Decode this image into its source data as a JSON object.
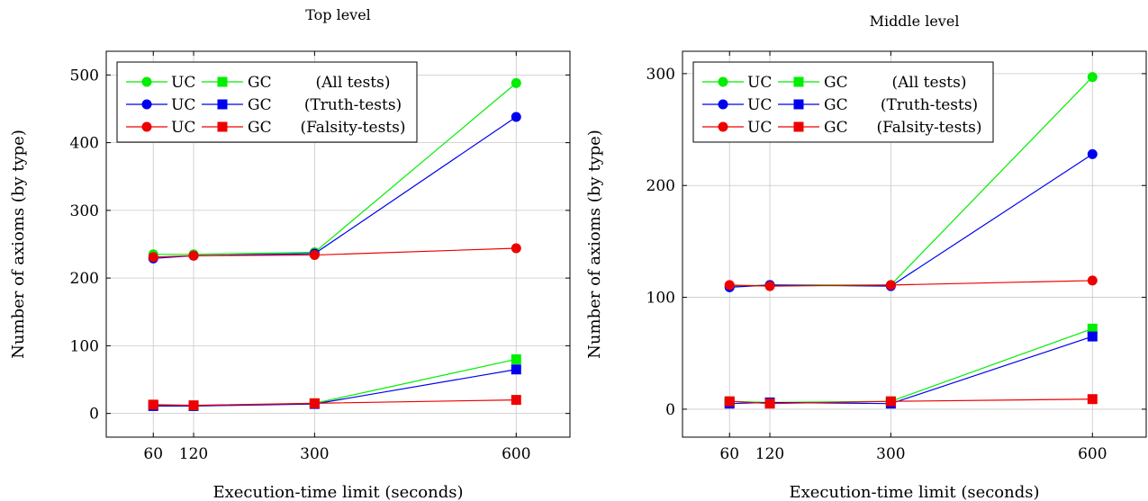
{
  "chart_data": [
    {
      "type": "line",
      "title": "Top level",
      "xlabel": "Execution-time limit (seconds)",
      "ylabel": "Number of axioms (by type)",
      "x": [
        60,
        120,
        300,
        600
      ],
      "xlim": [
        -10,
        680
      ],
      "ylim": [
        -35,
        535
      ],
      "yticks": [
        0,
        100,
        200,
        300,
        400,
        500
      ],
      "grid": true,
      "legend_position": "top-left",
      "series": [
        {
          "name": "UC",
          "group": "All tests",
          "marker": "circle",
          "color": "#00ee00",
          "values": [
            235,
            235,
            238,
            488
          ]
        },
        {
          "name": "GC",
          "group": "All tests",
          "marker": "square",
          "color": "#00ee00",
          "values": [
            12,
            11,
            15,
            80
          ]
        },
        {
          "name": "UC",
          "group": "Truth-tests",
          "marker": "circle",
          "color": "#0000ee",
          "values": [
            229,
            233,
            236,
            438
          ]
        },
        {
          "name": "GC",
          "group": "Truth-tests",
          "marker": "square",
          "color": "#0000ee",
          "values": [
            11,
            11,
            14,
            65
          ]
        },
        {
          "name": "UC",
          "group": "Falsity-tests",
          "marker": "circle",
          "color": "#ee0000",
          "values": [
            231,
            233,
            234,
            244
          ]
        },
        {
          "name": "GC",
          "group": "Falsity-tests",
          "marker": "square",
          "color": "#ee0000",
          "values": [
            13,
            12,
            15,
            20
          ]
        }
      ],
      "legend_rows": [
        {
          "uc": "UC",
          "gc": "GC",
          "label": "(All tests)",
          "color": "#00ee00"
        },
        {
          "uc": "UC",
          "gc": "GC",
          "label": "(Truth-tests)",
          "color": "#0000ee"
        },
        {
          "uc": "UC",
          "gc": "GC",
          "label": "(Falsity-tests)",
          "color": "#ee0000"
        }
      ]
    },
    {
      "type": "line",
      "title": "Middle level",
      "xlabel": "Execution-time limit (seconds)",
      "ylabel": "Number of axioms (by type)",
      "x": [
        60,
        120,
        300,
        600
      ],
      "xlim": [
        -10,
        680
      ],
      "ylim": [
        -25,
        320
      ],
      "yticks": [
        0,
        100,
        200,
        300
      ],
      "grid": true,
      "legend_position": "top-left",
      "series": [
        {
          "name": "UC",
          "group": "All tests",
          "marker": "circle",
          "color": "#00ee00",
          "values": [
            110,
            111,
            111,
            297
          ]
        },
        {
          "name": "GC",
          "group": "All tests",
          "marker": "square",
          "color": "#00ee00",
          "values": [
            7,
            6,
            7,
            72
          ]
        },
        {
          "name": "UC",
          "group": "Truth-tests",
          "marker": "circle",
          "color": "#0000ee",
          "values": [
            109,
            111,
            110,
            228
          ]
        },
        {
          "name": "GC",
          "group": "Truth-tests",
          "marker": "square",
          "color": "#0000ee",
          "values": [
            5,
            6,
            5,
            65
          ]
        },
        {
          "name": "UC",
          "group": "Falsity-tests",
          "marker": "circle",
          "color": "#ee0000",
          "values": [
            111,
            110,
            111,
            115
          ]
        },
        {
          "name": "GC",
          "group": "Falsity-tests",
          "marker": "square",
          "color": "#ee0000",
          "values": [
            7,
            5,
            7,
            9
          ]
        }
      ],
      "legend_rows": [
        {
          "uc": "UC",
          "gc": "GC",
          "label": "(All tests)",
          "color": "#00ee00"
        },
        {
          "uc": "UC",
          "gc": "GC",
          "label": "(Truth-tests)",
          "color": "#0000ee"
        },
        {
          "uc": "UC",
          "gc": "GC",
          "label": "(Falsity-tests)",
          "color": "#ee0000"
        }
      ]
    }
  ]
}
